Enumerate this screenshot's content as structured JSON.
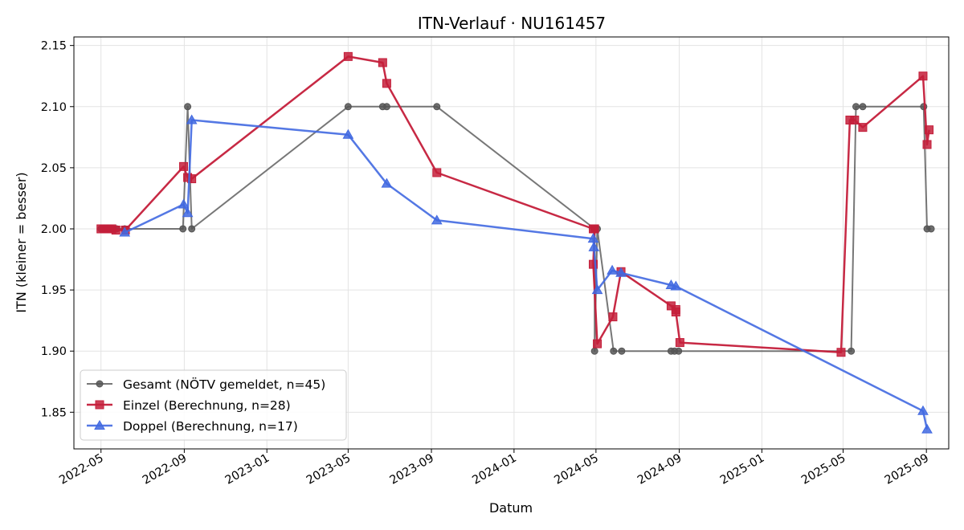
{
  "chart_data": {
    "type": "line",
    "title": "ITN-Verlauf · NU161457",
    "xlabel": "Datum",
    "ylabel": "ITN  (kleiner = besser)",
    "ylim": [
      1.82,
      2.157
    ],
    "xlim": [
      "2022-03-22",
      "2025-10-04"
    ],
    "grid": true,
    "legend_position": "lower-left",
    "x_ticks": [
      "2022-05",
      "2022-09",
      "2023-01",
      "2023-05",
      "2023-09",
      "2024-01",
      "2024-05",
      "2024-09",
      "2025-01",
      "2025-05",
      "2025-09"
    ],
    "y_ticks": [
      "2.15",
      "2.10",
      "2.05",
      "2.00",
      "1.95",
      "1.90",
      "1.85"
    ],
    "series": [
      {
        "name": "Gesamt (NÖTV gemeldet, n=45)",
        "color": "#555555",
        "marker": "circle",
        "points": [
          [
            "2022-05-01",
            2.0
          ],
          [
            "2022-05-04",
            2.0
          ],
          [
            "2022-05-07",
            2.0
          ],
          [
            "2022-05-10",
            2.0
          ],
          [
            "2022-05-13",
            2.0
          ],
          [
            "2022-05-16",
            2.0
          ],
          [
            "2022-05-19",
            2.0
          ],
          [
            "2022-05-24",
            2.0
          ],
          [
            "2022-06-05",
            2.0
          ],
          [
            "2022-08-30",
            2.0
          ],
          [
            "2022-09-06",
            2.1
          ],
          [
            "2022-09-12",
            2.0
          ],
          [
            "2023-05-01",
            2.1
          ],
          [
            "2023-06-21",
            2.1
          ],
          [
            "2023-06-27",
            2.1
          ],
          [
            "2023-09-09",
            2.1
          ],
          [
            "2024-04-29",
            2.0
          ],
          [
            "2024-04-29",
            1.9
          ],
          [
            "2024-05-03",
            2.0
          ],
          [
            "2024-05-27",
            1.9
          ],
          [
            "2024-06-08",
            1.9
          ],
          [
            "2024-08-20",
            1.9
          ],
          [
            "2024-08-25",
            1.9
          ],
          [
            "2024-08-31",
            1.9
          ],
          [
            "2025-05-13",
            1.9
          ],
          [
            "2025-05-20",
            2.1
          ],
          [
            "2025-05-30",
            2.1
          ],
          [
            "2025-08-28",
            2.1
          ],
          [
            "2025-09-02",
            2.0
          ],
          [
            "2025-09-08",
            2.0
          ]
        ]
      },
      {
        "name": "Einzel (Berechnung, n=28)",
        "color": "#c41e3a",
        "marker": "square",
        "points": [
          [
            "2022-05-01",
            2.0
          ],
          [
            "2022-05-06",
            2.0
          ],
          [
            "2022-05-11",
            2.0
          ],
          [
            "2022-05-17",
            2.0
          ],
          [
            "2022-05-23",
            1.999
          ],
          [
            "2022-06-06",
            1.999
          ],
          [
            "2022-08-31",
            2.051
          ],
          [
            "2022-09-06",
            2.042
          ],
          [
            "2022-09-12",
            2.041
          ],
          [
            "2023-05-01",
            2.141
          ],
          [
            "2023-06-21",
            2.136
          ],
          [
            "2023-06-27",
            2.119
          ],
          [
            "2023-09-09",
            2.046
          ],
          [
            "2024-04-27",
            2.0
          ],
          [
            "2024-04-29",
            2.0
          ],
          [
            "2024-04-27",
            1.971
          ],
          [
            "2024-05-03",
            1.906
          ],
          [
            "2024-05-26",
            1.928
          ],
          [
            "2024-06-07",
            1.965
          ],
          [
            "2024-08-20",
            1.937
          ],
          [
            "2024-08-27",
            1.934
          ],
          [
            "2024-08-27",
            1.932
          ],
          [
            "2024-09-02",
            1.907
          ],
          [
            "2025-04-28",
            1.899
          ],
          [
            "2025-05-11",
            2.089
          ],
          [
            "2025-05-18",
            2.089
          ],
          [
            "2025-05-30",
            2.083
          ],
          [
            "2025-08-27",
            2.125
          ],
          [
            "2025-09-02",
            2.069
          ],
          [
            "2025-09-05",
            2.081
          ]
        ]
      },
      {
        "name": "Doppel (Berechnung, n=17)",
        "color": "#4169e1",
        "marker": "triangle",
        "points": [
          [
            "2022-06-05",
            1.997
          ],
          [
            "2022-08-31",
            2.02
          ],
          [
            "2022-09-06",
            2.013
          ],
          [
            "2022-09-12",
            2.089
          ],
          [
            "2023-05-01",
            2.077
          ],
          [
            "2023-06-27",
            2.037
          ],
          [
            "2023-09-09",
            2.007
          ],
          [
            "2024-04-27",
            1.992
          ],
          [
            "2024-04-28",
            1.985
          ],
          [
            "2024-05-03",
            1.95
          ],
          [
            "2024-05-25",
            1.966
          ],
          [
            "2024-06-07",
            1.964
          ],
          [
            "2024-08-20",
            1.954
          ],
          [
            "2024-08-27",
            1.953
          ],
          [
            "2025-08-27",
            1.851
          ],
          [
            "2025-09-02",
            1.836
          ]
        ]
      }
    ]
  }
}
